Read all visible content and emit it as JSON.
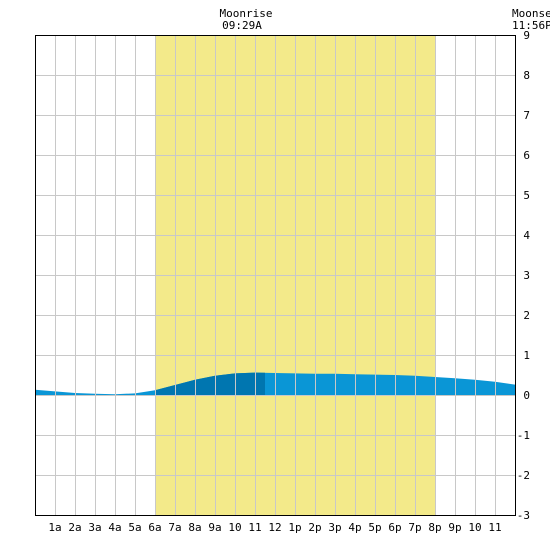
{
  "header": {
    "moonrise_label": "Moonrise",
    "moonrise_time": "09:29A",
    "moonset_label": "Moonset",
    "moonset_time": "11:56P"
  },
  "colors": {
    "daylight": "#f3ea8a",
    "tide_light": "#0a96d6",
    "tide_dark": "#0076b0",
    "grid": "#c8c8c8",
    "frame": "#000000"
  },
  "chart_data": {
    "type": "area",
    "title": "",
    "xlabel": "",
    "ylabel": "",
    "x_tick_labels": [
      "1a",
      "2a",
      "3a",
      "4a",
      "5a",
      "6a",
      "7a",
      "8a",
      "9a",
      "10",
      "11",
      "12",
      "1p",
      "2p",
      "3p",
      "4p",
      "5p",
      "6p",
      "7p",
      "8p",
      "9p",
      "10",
      "11"
    ],
    "y_tick_labels": [
      "9",
      "8",
      "7",
      "6",
      "5",
      "4",
      "3",
      "2",
      "1",
      "0",
      "-1",
      "-2",
      "-3"
    ],
    "xlim": [
      0,
      24
    ],
    "ylim": [
      -3,
      9
    ],
    "grid": true,
    "daylight_hours": [
      6.0,
      20.0
    ],
    "moonrise_hour": 9.48,
    "moonset_hour": 23.93,
    "highlight_hours": [
      6.0,
      11.5
    ],
    "series": [
      {
        "x": [
          0,
          1,
          2,
          3,
          4,
          5,
          6,
          7,
          8,
          9,
          10,
          11,
          12,
          13,
          14,
          15,
          16,
          17,
          18,
          19,
          20,
          21,
          22,
          23,
          24
        ],
        "values": [
          0.13,
          0.09,
          0.05,
          0.03,
          0.02,
          0.04,
          0.12,
          0.25,
          0.38,
          0.48,
          0.54,
          0.56,
          0.55,
          0.54,
          0.53,
          0.53,
          0.52,
          0.51,
          0.5,
          0.48,
          0.45,
          0.42,
          0.38,
          0.33,
          0.26
        ]
      }
    ]
  }
}
